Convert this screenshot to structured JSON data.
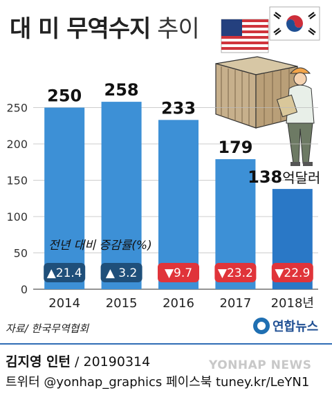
{
  "header": {
    "title_main": "대 미 무역수지",
    "title_sub": "추이"
  },
  "chart_data": {
    "type": "bar",
    "categories": [
      "2014",
      "2015",
      "2016",
      "2017",
      "2018년"
    ],
    "values": [
      250,
      258,
      233,
      179,
      138
    ],
    "value_labels": [
      "250",
      "258",
      "233",
      "179",
      "138"
    ],
    "value_unit": "억달러",
    "ylim": [
      0,
      260
    ],
    "yticks": [
      0,
      50,
      100,
      150,
      200,
      250
    ],
    "grid": true,
    "bar_colors": [
      "#3d90d6",
      "#3d90d6",
      "#3d90d6",
      "#3d90d6",
      "#2a78c6"
    ],
    "change_label": "전년 대비 증감률(%)",
    "changes": [
      "▲21.4",
      "▲ 3.2",
      "▼9.7",
      "▼23.2",
      "▼22.9"
    ],
    "change_colors": [
      "#1f4f7a",
      "#1f4f7a",
      "#e0343a",
      "#e0343a",
      "#e0343a"
    ]
  },
  "footer": {
    "source": "자료/ 한국무역협회",
    "logo_text": "연합뉴스",
    "author": "김지영 인턴",
    "date": " / 20190314",
    "social": "트위터 @yonhap_graphics  페이스북 tuney.kr/LeYN1",
    "watermark": "YONHAP NEWS"
  },
  "colors": {
    "accent": "#2f6db5",
    "positive": "#1f4f7a",
    "negative": "#e0343a"
  }
}
